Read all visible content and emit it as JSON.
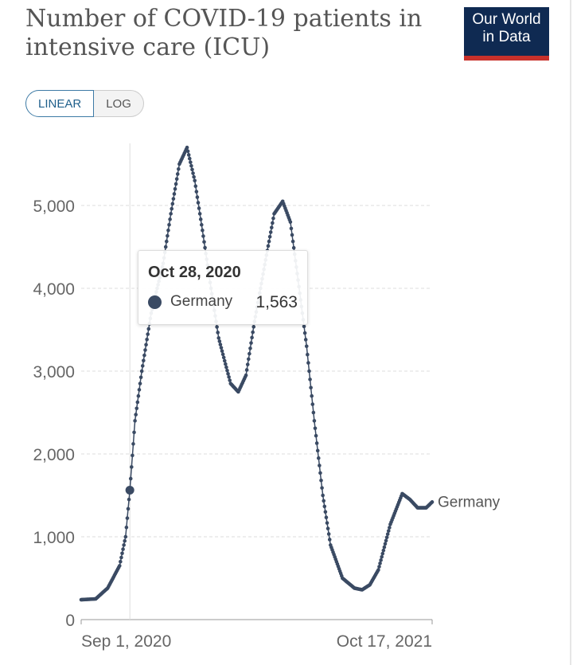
{
  "header": {
    "title": "Number of COVID-19 patients in intensive care (ICU)",
    "logo_line1": "Our World",
    "logo_line2": "in Data"
  },
  "toggle": {
    "linear": "LINEAR",
    "log": "LOG",
    "active": "LINEAR"
  },
  "tooltip": {
    "date": "Oct 28, 2020",
    "series": "Germany",
    "value": "1,563"
  },
  "colors": {
    "series": "#3a4a63",
    "logo_bg": "#0f2a52",
    "logo_accent": "#c8312b"
  },
  "chart_data": {
    "type": "line",
    "title": "Number of COVID-19 patients in intensive care (ICU)",
    "xlabel": "",
    "ylabel": "",
    "x_tick_labels": [
      "Sep 1, 2020",
      "Oct 17, 2021"
    ],
    "y_ticks": [
      0,
      1000,
      2000,
      3000,
      4000,
      5000
    ],
    "y_tick_labels": [
      "0",
      "1,000",
      "2,000",
      "3,000",
      "4,000",
      "5,000"
    ],
    "ylim": [
      0,
      5800
    ],
    "x_unit": "days since Sep 1, 2020",
    "xlim": [
      0,
      411
    ],
    "grid": true,
    "series": [
      {
        "name": "Germany",
        "label": "Germany",
        "x": [
          0,
          17,
          31,
          45,
          52,
          57,
          63,
          71,
          82,
          96,
          105,
          115,
          124,
          133,
          142,
          152,
          161,
          175,
          184,
          193,
          203,
          217,
          226,
          236,
          245,
          254,
          264,
          273,
          283,
          292,
          306,
          320,
          329,
          338,
          348,
          362,
          376,
          385,
          394,
          404,
          411
        ],
        "values": [
          240,
          250,
          380,
          650,
          1000,
          1563,
          2400,
          3000,
          3700,
          4300,
          4900,
          5500,
          5700,
          5300,
          4700,
          4000,
          3400,
          2850,
          2750,
          2950,
          3600,
          4400,
          4900,
          5050,
          4800,
          4100,
          3300,
          2400,
          1500,
          900,
          500,
          380,
          360,
          420,
          600,
          1150,
          1520,
          1450,
          1350,
          1350,
          1420
        ]
      }
    ],
    "highlight": {
      "x": 57,
      "value": 1563,
      "date": "Oct 28, 2020"
    }
  }
}
